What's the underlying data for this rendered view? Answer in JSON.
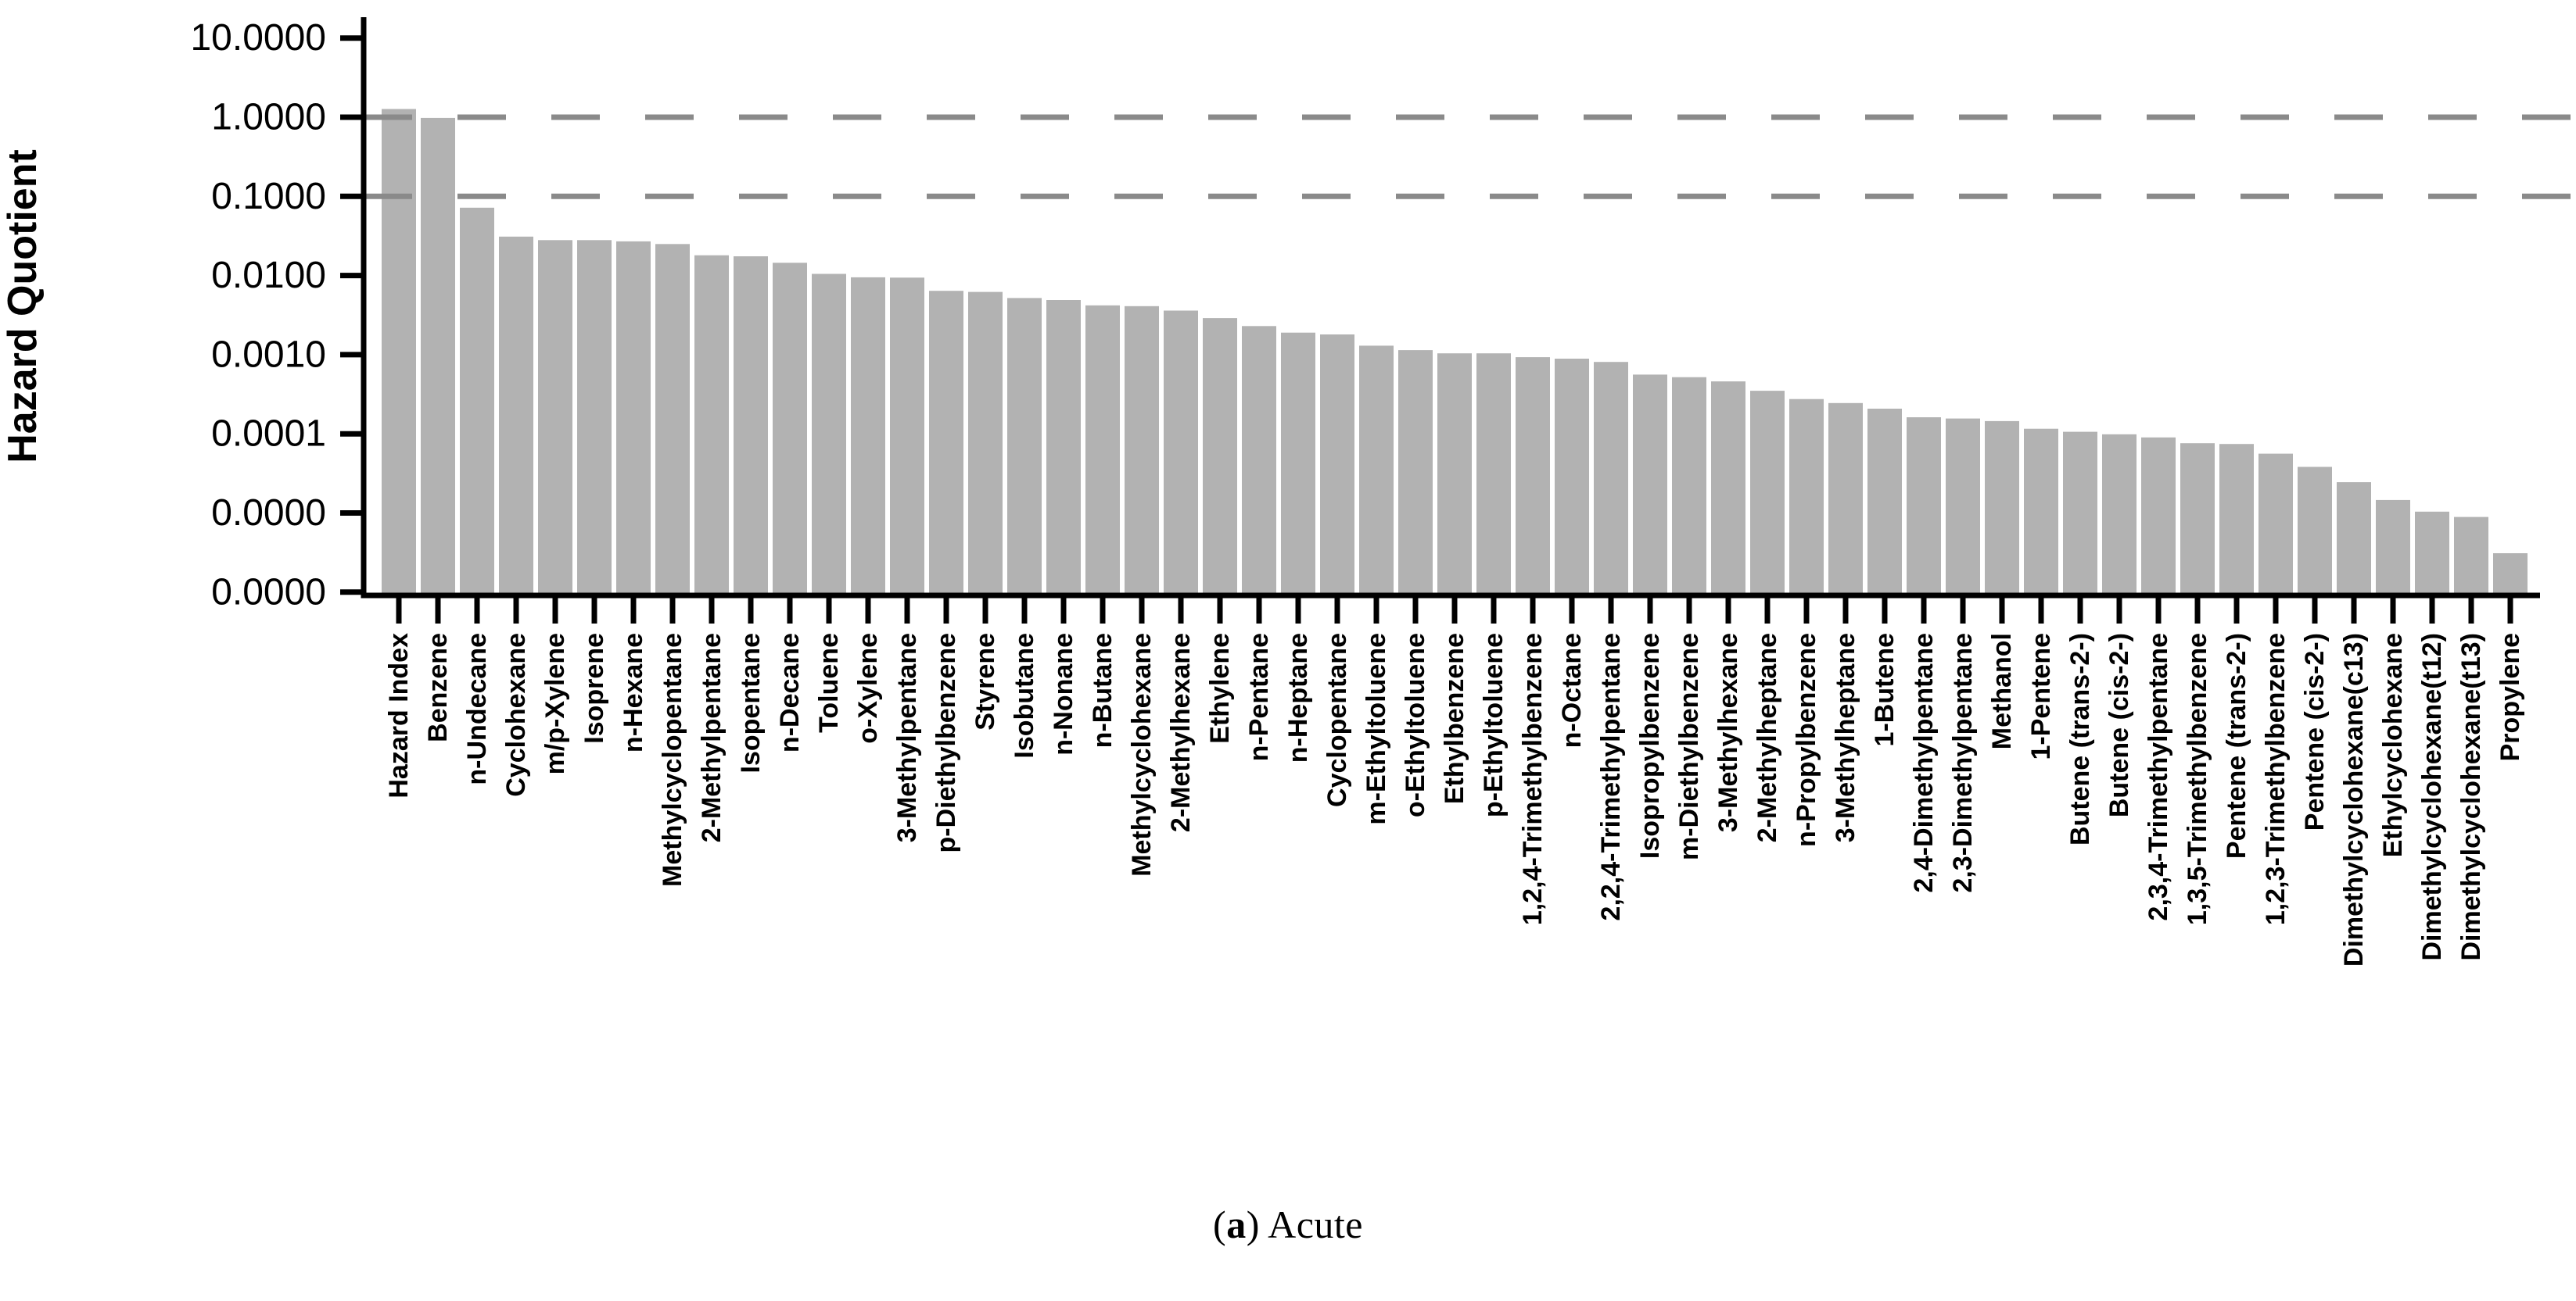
{
  "caption": {
    "pre": "(",
    "bold": "a",
    "post": ") Acute"
  },
  "chart_data": {
    "type": "bar",
    "title": "",
    "xlabel": "",
    "ylabel": "Hazard Quotient",
    "y_scale": "log",
    "ylim": [
      1e-06,
      10
    ],
    "grid": "off",
    "legend": "none",
    "bar_color": "#b2b2b2",
    "axis_color": "#000000",
    "reference_line_color": "#8a8a8a",
    "reference_lines": [
      1.0,
      0.1
    ],
    "ytick_values": [
      10,
      1,
      0.1,
      0.01,
      0.001,
      0.0001,
      1e-05,
      1e-06
    ],
    "ytick_labels": [
      "10.0000",
      "1.0000",
      "0.1000",
      "0.0100",
      "0.0010",
      "0.0001",
      "0.0000",
      "0.0000"
    ],
    "categories": [
      "Hazard Index",
      "Benzene",
      "n-Undecane",
      "Cyclohexane",
      "m/p-Xylene",
      "Isoprene",
      "n-Hexane",
      "Methylcyclopentane",
      "2-Methylpentane",
      "Isopentane",
      "n-Decane",
      "Toluene",
      "o-Xylene",
      "3-Methylpentane",
      "p-Diethylbenzene",
      "Styrene",
      "Isobutane",
      "n-Nonane",
      "n-Butane",
      "Methylcyclohexane",
      "2-Methylhexane",
      "Ethylene",
      "n-Pentane",
      "n-Heptane",
      "Cyclopentane",
      "m-Ethyltoluene",
      "o-Ethyltoluene",
      "Ethylbenzene",
      "p-Ethyltoluene",
      "1,2,4-Trimethylbenzene",
      "n-Octane",
      "2,2,4-Trimethylpentane",
      "Isopropylbenzene",
      "m-Diethylbenzene",
      "3-Methylhexane",
      "2-Methylheptane",
      "n-Propylbenzene",
      "3-Methylheptane",
      "1-Butene",
      "2,4-Dimethylpentane",
      "2,3-Dimethylpentane",
      "Methanol",
      "1-Pentene",
      "Butene (trans-2-)",
      "Butene (cis-2-)",
      "2,3,4-Trimethylpentane",
      "1,3,5-Trimethylbenzene",
      "Pentene (trans-2-)",
      "1,2,3-Trimethylbenzene",
      "Pentene (cis-2-)",
      "Dimethylcyclohexane(c13)",
      "Ethylcyclohexane",
      "Dimethylcyclohexane(t12)",
      "Dimethylcyclohexane(t13)",
      "Propylene"
    ],
    "values": [
      1.27,
      0.98,
      0.072,
      0.031,
      0.028,
      0.028,
      0.027,
      0.025,
      0.018,
      0.0175,
      0.0145,
      0.0105,
      0.0095,
      0.0094,
      0.0064,
      0.0062,
      0.0052,
      0.0049,
      0.0042,
      0.0041,
      0.0036,
      0.0029,
      0.0023,
      0.0019,
      0.0018,
      0.0013,
      0.00114,
      0.00104,
      0.00104,
      0.00093,
      0.00089,
      0.00081,
      0.00056,
      0.00052,
      0.00046,
      0.00035,
      0.000275,
      0.000245,
      0.000208,
      0.000162,
      0.000156,
      0.000145,
      0.000116,
      0.000106,
      9.86e-05,
      9.01e-05,
      7.62e-05,
      7.45e-05,
      5.62e-05,
      3.82e-05,
      2.45e-05,
      1.46e-05,
      1.04e-05,
      8.9e-06,
      3.1e-06
    ]
  }
}
